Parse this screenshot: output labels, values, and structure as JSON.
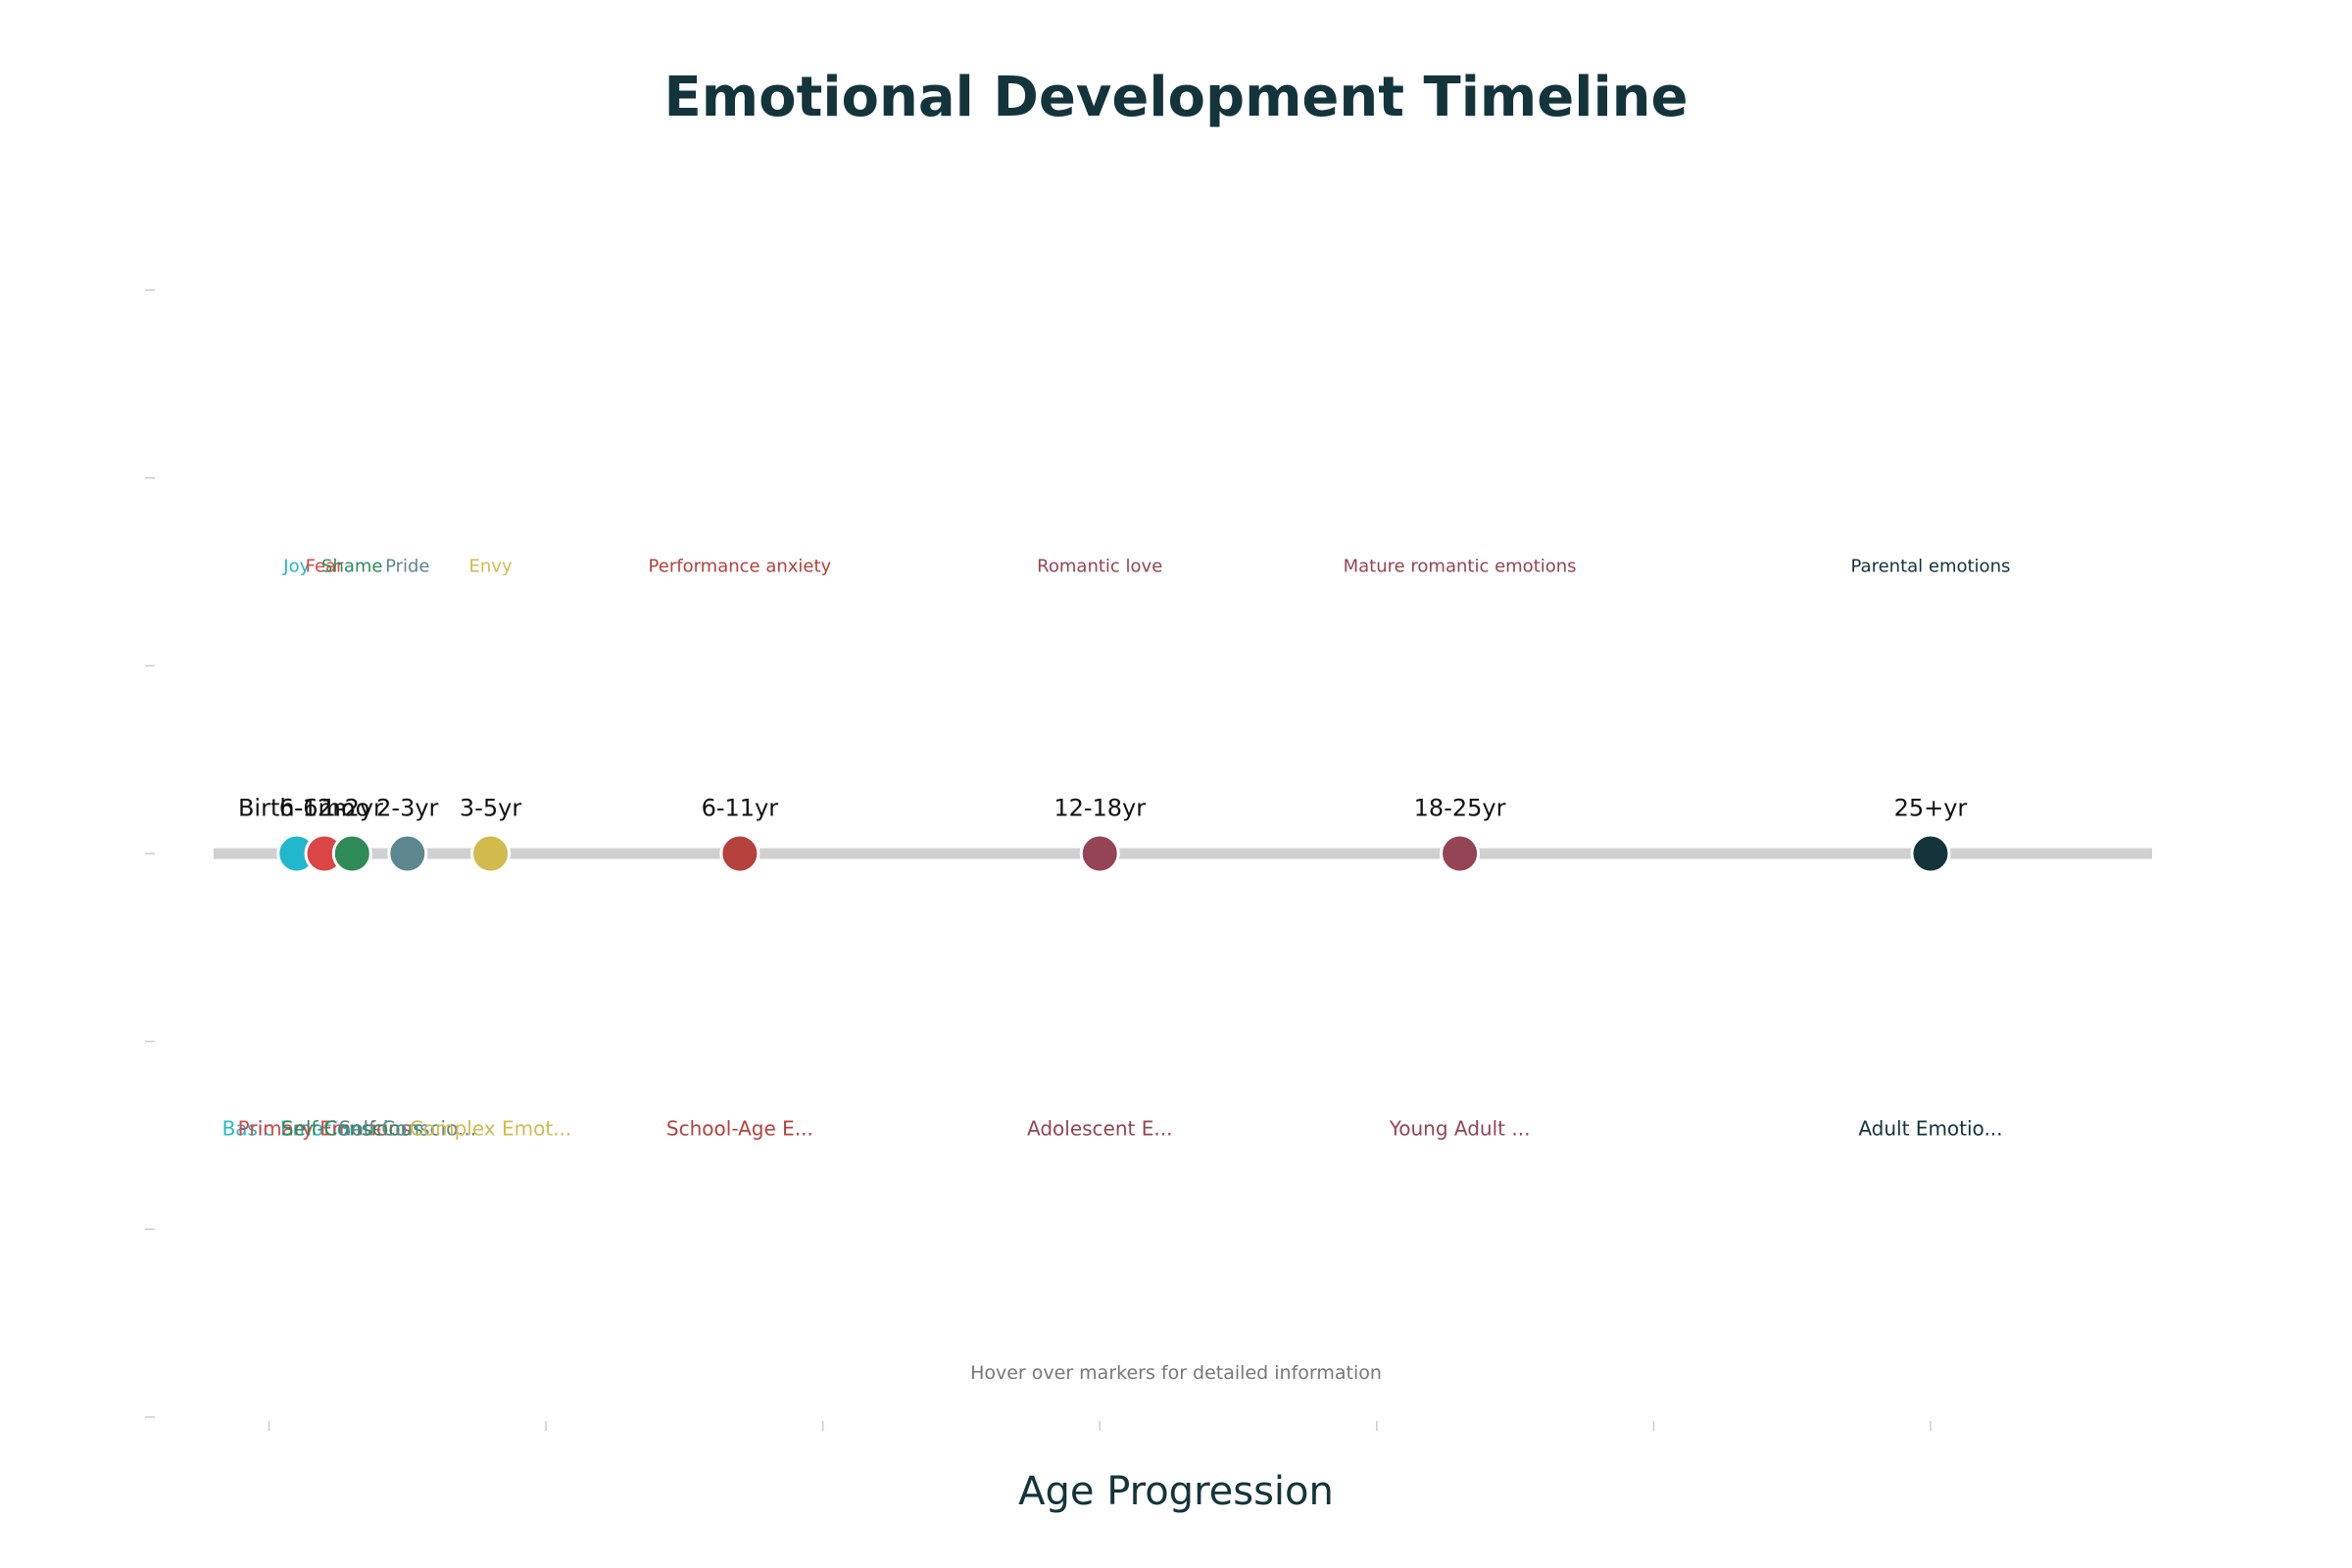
{
  "chart_data": {
    "type": "scatter",
    "title": "Emotional Development Timeline",
    "xlabel": "Age Progression",
    "ylabel": "",
    "xlim": [
      -0.2,
      6.8
    ],
    "ylim": [
      -3,
      3
    ],
    "grid": false,
    "legend": "none",
    "track_color": "#d0d0d0",
    "annotation": "Hover over markers for detailed information",
    "milestones": [
      {
        "age": "Birth-6mo",
        "x": 0.1,
        "emotion": "Joy",
        "stage": "Basic Emotions",
        "color": "#21b8cd"
      },
      {
        "age": "6-12mo",
        "x": 0.2,
        "emotion": "Fear",
        "stage": "Primary Emotions",
        "color": "#db4545"
      },
      {
        "age": "1-2yr",
        "x": 0.3,
        "emotion": "Shame",
        "stage": "Self-Conscious",
        "color": "#2e8b57"
      },
      {
        "age": "2-3yr",
        "x": 0.5,
        "emotion": "Pride",
        "stage": "Self-Conscio...",
        "color": "#5d878f"
      },
      {
        "age": "3-5yr",
        "x": 0.8,
        "emotion": "Envy",
        "stage": "Complex Emot...",
        "color": "#d2ba4c"
      },
      {
        "age": "6-11yr",
        "x": 1.7,
        "emotion": "Performance anxiety",
        "stage": "School-Age E...",
        "color": "#b4413c"
      },
      {
        "age": "12-18yr",
        "x": 3.0,
        "emotion": "Romantic love",
        "stage": "Adolescent E...",
        "color": "#944454"
      },
      {
        "age": "18-25yr",
        "x": 4.3,
        "emotion": "Mature romantic emotions",
        "stage": "Young Adult ...",
        "color": "#944454"
      },
      {
        "age": "25+yr",
        "x": 6.0,
        "emotion": "Parental emotions",
        "stage": "Adult Emotio...",
        "color": "#13343b"
      }
    ]
  }
}
